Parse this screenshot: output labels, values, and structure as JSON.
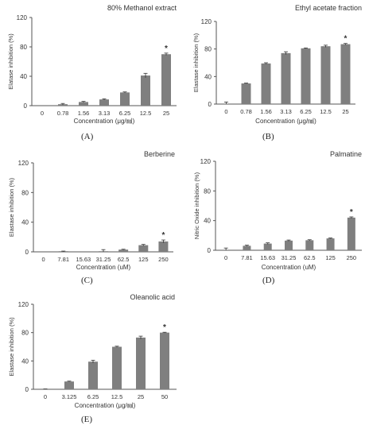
{
  "colors": {
    "bar": "#7f7f7f",
    "axis": "#555555",
    "text": "#333333"
  },
  "chart_data": [
    {
      "type": "bar",
      "panel_label": "(A)",
      "title": "80% Methanol extract",
      "xlabel": "Concentration (μg/㏖)",
      "ylabel": "Elatase inhibition (%)",
      "ylim": [
        0,
        120
      ],
      "yticks": [
        0,
        40,
        80,
        120
      ],
      "categories": [
        "0",
        "0.78",
        "1.56",
        "3.13",
        "6.25",
        "12.5",
        "25"
      ],
      "values": [
        0,
        2,
        5,
        8.5,
        18,
        41,
        70
      ],
      "errors": [
        0,
        1,
        0.8,
        0.8,
        0.7,
        3,
        1.5
      ],
      "significance": {
        "index": 6,
        "mark": "*"
      },
      "grid": false
    },
    {
      "type": "bar",
      "panel_label": "(B)",
      "title": "Ethyl acetate fraction",
      "xlabel": "Concentration (μg/㏖)",
      "ylabel": "Elastase inhibition (%)",
      "ylim": [
        0,
        120
      ],
      "yticks": [
        0,
        40,
        80,
        120
      ],
      "categories": [
        "0",
        "0.78",
        "1.56",
        "3.13",
        "6.25",
        "12.5",
        "25"
      ],
      "values": [
        0,
        30,
        59,
        74,
        81,
        84,
        87
      ],
      "errors": [
        3,
        0.5,
        1,
        2,
        0.5,
        1.5,
        1
      ],
      "significance": {
        "index": 6,
        "mark": "*"
      },
      "grid": false
    },
    {
      "type": "bar",
      "panel_label": "(C)",
      "title": "Berberine",
      "xlabel": "Concentration (uM)",
      "ylabel": "Elastase inhibition (%)",
      "ylim": [
        0,
        120
      ],
      "yticks": [
        0,
        40,
        80,
        120
      ],
      "categories": [
        "0",
        "7.81",
        "15.63",
        "31.25",
        "62.5",
        "125",
        "250"
      ],
      "values": [
        0,
        0.5,
        0,
        0.5,
        3,
        9,
        14
      ],
      "errors": [
        0,
        0.5,
        0,
        2.5,
        0.5,
        1,
        2
      ],
      "significance": {
        "index": 6,
        "mark": "*"
      },
      "grid": false
    },
    {
      "type": "bar",
      "panel_label": "(D)",
      "title": "Palmatine",
      "xlabel": "Concentration (uM)",
      "ylabel": "Nitric Oxide inhibition (%)",
      "ylim": [
        0,
        120
      ],
      "yticks": [
        0,
        40,
        80,
        120
      ],
      "categories": [
        "0",
        "7.81",
        "15.63",
        "31.25",
        "62.5",
        "125",
        "250"
      ],
      "values": [
        0,
        6,
        9,
        13,
        13.5,
        16,
        44
      ],
      "errors": [
        3,
        0.8,
        1,
        0.8,
        0.7,
        0.5,
        1
      ],
      "significance": {
        "index": 6,
        "mark": "*"
      },
      "grid": false
    },
    {
      "type": "bar",
      "panel_label": "(E)",
      "title": "Oleanolic acid",
      "xlabel": "Concentration (μg/㏖)",
      "ylabel": "Elastase inhibition (%)",
      "ylim": [
        0,
        120
      ],
      "yticks": [
        0,
        40,
        80,
        120
      ],
      "categories": [
        "0",
        "3.125",
        "6.25",
        "12.5",
        "25",
        "50"
      ],
      "values": [
        0,
        11,
        39,
        60,
        73,
        80
      ],
      "errors": [
        0.5,
        0.5,
        2,
        0.8,
        2,
        0.5
      ],
      "significance": {
        "index": 5,
        "mark": "*"
      },
      "grid": false
    }
  ]
}
